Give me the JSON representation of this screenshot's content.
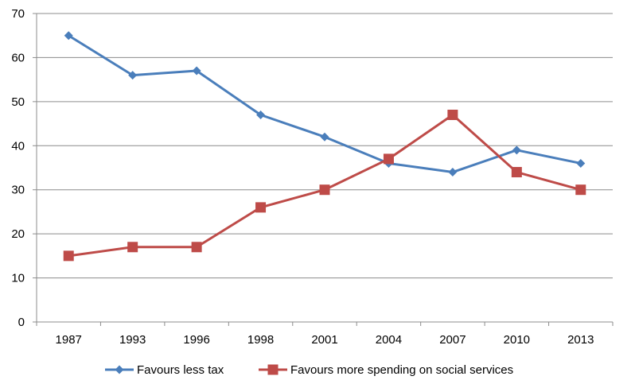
{
  "chart_data": {
    "type": "line",
    "title": "",
    "xlabel": "",
    "ylabel": "",
    "categories": [
      "1987",
      "1993",
      "1996",
      "1998",
      "2001",
      "2004",
      "2007",
      "2010",
      "2013"
    ],
    "ylim": [
      0,
      70
    ],
    "yticks": [
      "0",
      "10",
      "20",
      "30",
      "40",
      "50",
      "60",
      "70"
    ],
    "grid": "horizontal",
    "legend_position": "bottom",
    "series": [
      {
        "name": "Favours less tax",
        "values": [
          65,
          56,
          57,
          47,
          42,
          36,
          34,
          39,
          36
        ],
        "color": "#4a7ebb",
        "marker": "diamond"
      },
      {
        "name": "Favours more spending on social services",
        "values": [
          15,
          17,
          17,
          26,
          30,
          37,
          47,
          34,
          30
        ],
        "color": "#be4b48",
        "marker": "square"
      }
    ]
  }
}
